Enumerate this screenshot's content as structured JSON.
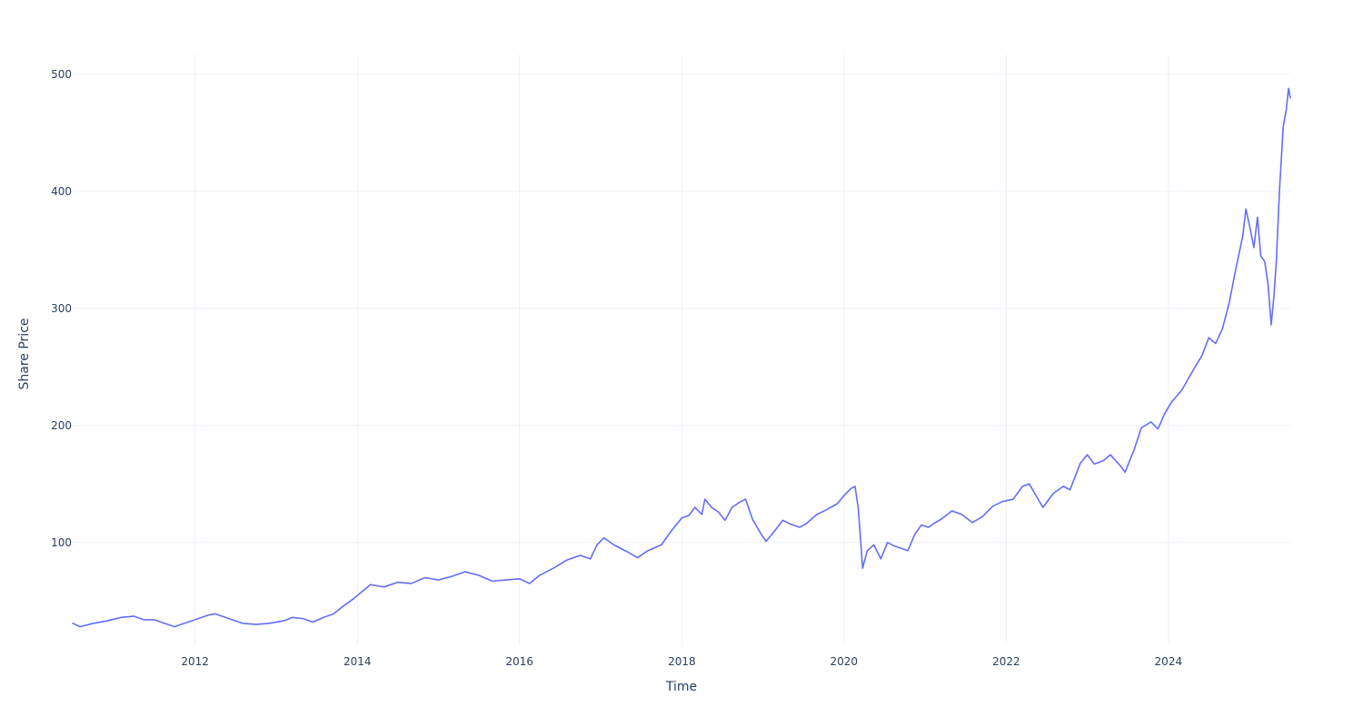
{
  "chart_data": {
    "type": "line",
    "title": "",
    "xlabel": "Time",
    "ylabel": "Share Price",
    "x_type": "date",
    "xlim": [
      "2010-06-29",
      "2025-07-03"
    ],
    "ylim": [
      13,
      517
    ],
    "x_ticks": [
      {
        "value": "2012-01-01",
        "label": "2012"
      },
      {
        "value": "2014-01-01",
        "label": "2014"
      },
      {
        "value": "2016-01-01",
        "label": "2016"
      },
      {
        "value": "2018-01-01",
        "label": "2018"
      },
      {
        "value": "2020-01-01",
        "label": "2020"
      },
      {
        "value": "2022-01-01",
        "label": "2022"
      },
      {
        "value": "2024-01-01",
        "label": "2024"
      }
    ],
    "y_ticks": [
      100,
      200,
      300,
      400,
      500
    ],
    "grid": true,
    "legend": "none",
    "series": [
      {
        "color": "#636efa",
        "points": [
          [
            "2010-06-29",
            31
          ],
          [
            "2010-08-01",
            28
          ],
          [
            "2010-10-01",
            31
          ],
          [
            "2010-12-01",
            33
          ],
          [
            "2011-02-01",
            36
          ],
          [
            "2011-04-01",
            37
          ],
          [
            "2011-05-15",
            34
          ],
          [
            "2011-07-01",
            34
          ],
          [
            "2011-08-15",
            31
          ],
          [
            "2011-10-01",
            28
          ],
          [
            "2011-11-15",
            31
          ],
          [
            "2012-01-01",
            34
          ],
          [
            "2012-03-01",
            38
          ],
          [
            "2012-04-01",
            39
          ],
          [
            "2012-06-01",
            35
          ],
          [
            "2012-08-01",
            31
          ],
          [
            "2012-10-01",
            30
          ],
          [
            "2012-12-01",
            31
          ],
          [
            "2013-02-01",
            33
          ],
          [
            "2013-03-15",
            36
          ],
          [
            "2013-05-01",
            35
          ],
          [
            "2013-06-15",
            32
          ],
          [
            "2013-08-01",
            36
          ],
          [
            "2013-09-15",
            39
          ],
          [
            "2013-11-01",
            46
          ],
          [
            "2013-12-15",
            52
          ],
          [
            "2014-01-15",
            57
          ],
          [
            "2014-03-01",
            64
          ],
          [
            "2014-05-01",
            62
          ],
          [
            "2014-07-01",
            66
          ],
          [
            "2014-09-01",
            65
          ],
          [
            "2014-11-01",
            70
          ],
          [
            "2015-01-01",
            68
          ],
          [
            "2015-03-01",
            71
          ],
          [
            "2015-05-01",
            75
          ],
          [
            "2015-07-01",
            72
          ],
          [
            "2015-09-01",
            67
          ],
          [
            "2015-11-01",
            68
          ],
          [
            "2016-01-01",
            69
          ],
          [
            "2016-02-15",
            65
          ],
          [
            "2016-04-01",
            72
          ],
          [
            "2016-06-01",
            78
          ],
          [
            "2016-08-01",
            85
          ],
          [
            "2016-10-01",
            89
          ],
          [
            "2016-11-15",
            86
          ],
          [
            "2016-12-15",
            98
          ],
          [
            "2017-01-15",
            104
          ],
          [
            "2017-03-01",
            98
          ],
          [
            "2017-05-01",
            92
          ],
          [
            "2017-06-15",
            87
          ],
          [
            "2017-08-01",
            93
          ],
          [
            "2017-10-01",
            98
          ],
          [
            "2017-11-15",
            110
          ],
          [
            "2018-01-01",
            121
          ],
          [
            "2018-02-01",
            123
          ],
          [
            "2018-03-01",
            130
          ],
          [
            "2018-04-01",
            124
          ],
          [
            "2018-04-15",
            137
          ],
          [
            "2018-05-15",
            130
          ],
          [
            "2018-06-15",
            126
          ],
          [
            "2018-07-15",
            119
          ],
          [
            "2018-08-15",
            130
          ],
          [
            "2018-09-15",
            134
          ],
          [
            "2018-10-15",
            137
          ],
          [
            "2018-11-15",
            120
          ],
          [
            "2018-12-15",
            110
          ],
          [
            "2019-01-15",
            101
          ],
          [
            "2019-02-15",
            108
          ],
          [
            "2019-04-01",
            119
          ],
          [
            "2019-05-01",
            116
          ],
          [
            "2019-06-15",
            113
          ],
          [
            "2019-07-15",
            116
          ],
          [
            "2019-09-01",
            124
          ],
          [
            "2019-10-15",
            128
          ],
          [
            "2019-12-01",
            133
          ],
          [
            "2020-01-01",
            140
          ],
          [
            "2020-02-01",
            146
          ],
          [
            "2020-02-20",
            148
          ],
          [
            "2020-03-05",
            130
          ],
          [
            "2020-03-15",
            105
          ],
          [
            "2020-03-25",
            78
          ],
          [
            "2020-04-15",
            93
          ],
          [
            "2020-05-15",
            98
          ],
          [
            "2020-06-15",
            86
          ],
          [
            "2020-07-15",
            100
          ],
          [
            "2020-08-15",
            97
          ],
          [
            "2020-09-15",
            95
          ],
          [
            "2020-10-15",
            93
          ],
          [
            "2020-11-15",
            107
          ],
          [
            "2020-12-15",
            115
          ],
          [
            "2021-01-15",
            113
          ],
          [
            "2021-02-15",
            117
          ],
          [
            "2021-03-15",
            120
          ],
          [
            "2021-05-01",
            127
          ],
          [
            "2021-06-15",
            124
          ],
          [
            "2021-08-01",
            117
          ],
          [
            "2021-09-15",
            122
          ],
          [
            "2021-11-01",
            131
          ],
          [
            "2021-12-15",
            135
          ],
          [
            "2022-02-01",
            137
          ],
          [
            "2022-03-15",
            148
          ],
          [
            "2022-04-15",
            150
          ],
          [
            "2022-05-15",
            140
          ],
          [
            "2022-06-15",
            130
          ],
          [
            "2022-08-01",
            142
          ],
          [
            "2022-09-15",
            148
          ],
          [
            "2022-10-15",
            145
          ],
          [
            "2022-12-01",
            168
          ],
          [
            "2023-01-01",
            175
          ],
          [
            "2023-02-01",
            167
          ],
          [
            "2023-03-15",
            170
          ],
          [
            "2023-04-15",
            175
          ],
          [
            "2023-06-01",
            165
          ],
          [
            "2023-06-20",
            160
          ],
          [
            "2023-08-01",
            180
          ],
          [
            "2023-09-01",
            198
          ],
          [
            "2023-10-15",
            203
          ],
          [
            "2023-11-15",
            197
          ],
          [
            "2023-12-15",
            210
          ],
          [
            "2024-01-15",
            220
          ],
          [
            "2024-03-01",
            230
          ],
          [
            "2024-04-15",
            245
          ],
          [
            "2024-06-01",
            260
          ],
          [
            "2024-07-01",
            275
          ],
          [
            "2024-08-01",
            270
          ],
          [
            "2024-09-01",
            283
          ],
          [
            "2024-10-01",
            305
          ],
          [
            "2024-11-01",
            335
          ],
          [
            "2024-12-01",
            362
          ],
          [
            "2024-12-15",
            385
          ],
          [
            "2025-01-01",
            370
          ],
          [
            "2025-01-20",
            352
          ],
          [
            "2025-02-05",
            378
          ],
          [
            "2025-02-20",
            345
          ],
          [
            "2025-03-10",
            340
          ],
          [
            "2025-03-25",
            320
          ],
          [
            "2025-04-08",
            286
          ],
          [
            "2025-04-20",
            310
          ],
          [
            "2025-05-01",
            340
          ],
          [
            "2025-05-15",
            400
          ],
          [
            "2025-06-01",
            455
          ],
          [
            "2025-06-15",
            470
          ],
          [
            "2025-06-25",
            488
          ],
          [
            "2025-07-03",
            480
          ]
        ]
      }
    ]
  }
}
